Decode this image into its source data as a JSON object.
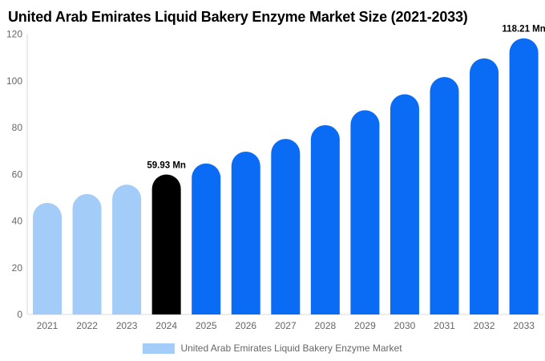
{
  "title": "United Arab Emirates Liquid Bakery Enzyme Market Size (2021-2033)",
  "legend": {
    "label": "United Arab Emirates Liquid Bakery Enzyme Market",
    "swatch_color": "#a3cdf8"
  },
  "colors": {
    "historical_bar": "#a3cdf8",
    "base_year_bar": "#000000",
    "forecast_bar": "#0a6cf5",
    "axis_line": "#e2e2e2",
    "axis_text": "#666666",
    "data_label_text": "#000000",
    "background": "#ffffff"
  },
  "chart_data": {
    "type": "bar",
    "title": "United Arab Emirates Liquid Bakery Enzyme Market Size (2021-2033)",
    "unit": "Mn",
    "categories": [
      "2021",
      "2022",
      "2023",
      "2024",
      "2025",
      "2026",
      "2027",
      "2028",
      "2029",
      "2030",
      "2031",
      "2032",
      "2033"
    ],
    "values": [
      47.78,
      51.53,
      55.57,
      59.93,
      64.63,
      69.7,
      75.16,
      81.05,
      87.41,
      94.26,
      101.65,
      109.62,
      118.21
    ],
    "bar_colors": [
      "#a3cdf8",
      "#a3cdf8",
      "#a3cdf8",
      "#000000",
      "#0a6cf5",
      "#0a6cf5",
      "#0a6cf5",
      "#0a6cf5",
      "#0a6cf5",
      "#0a6cf5",
      "#0a6cf5",
      "#0a6cf5",
      "#0a6cf5"
    ],
    "data_labels": [
      {
        "index": 3,
        "text": "59.93 Mn"
      },
      {
        "index": 12,
        "text": "118.21 Mn"
      }
    ],
    "xlabel": "",
    "ylabel": "",
    "ylim": [
      0,
      120
    ],
    "yticks": [
      0,
      20,
      40,
      60,
      80,
      100,
      120
    ],
    "grid": false,
    "legend_position": "bottom",
    "legend_entries": [
      "United Arab Emirates Liquid Bakery Enzyme Market"
    ]
  }
}
